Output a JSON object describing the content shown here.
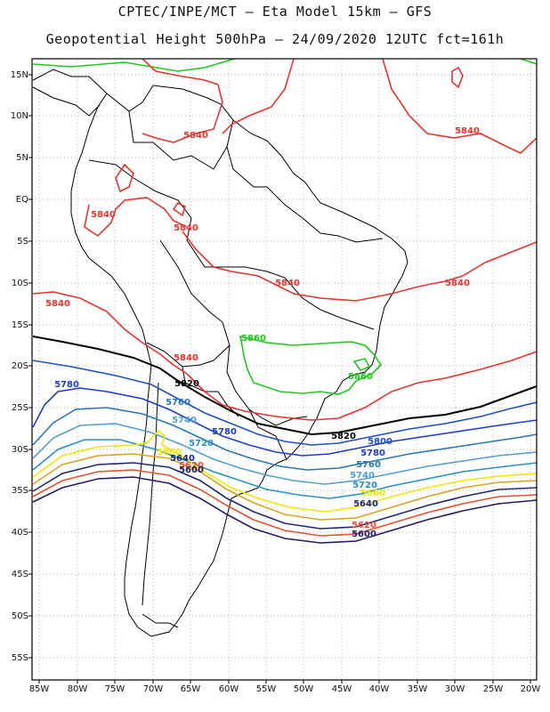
{
  "header": {
    "line1": "CPTEC/INPE/MCT –  Eta Model 15km – GFS",
    "line2": "Geopotential Height 500hPa – 24/09/2020 12UTC fct=161h"
  },
  "axes": {
    "lat_labels": [
      "15N",
      "10N",
      "5N",
      "EQ",
      "5S",
      "10S",
      "15S",
      "20S",
      "25S",
      "30S",
      "35S",
      "40S",
      "45S",
      "50S",
      "55S"
    ],
    "lon_labels": [
      "85W",
      "80W",
      "75W",
      "70W",
      "65W",
      "60W",
      "55W",
      "50W",
      "45W",
      "40W",
      "35W",
      "30W",
      "25W",
      "20W"
    ]
  },
  "contour_labels": [
    {
      "text": "5840",
      "color": "#e8332e"
    },
    {
      "text": "5840",
      "color": "#e8332e"
    },
    {
      "text": "5840",
      "color": "#e8332e"
    },
    {
      "text": "5840",
      "color": "#e8332e"
    },
    {
      "text": "5840",
      "color": "#e8332e"
    },
    {
      "text": "5840",
      "color": "#e8332e"
    },
    {
      "text": "5840",
      "color": "#e8332e"
    },
    {
      "text": "5840",
      "color": "#e8332e"
    },
    {
      "text": "5860",
      "color": "#1ec81e"
    },
    {
      "text": "5860",
      "color": "#1ec81e"
    },
    {
      "text": "5820",
      "color": "#000000"
    },
    {
      "text": "5820",
      "color": "#000000"
    },
    {
      "text": "5780",
      "color": "#1e3cd2"
    },
    {
      "text": "5780",
      "color": "#1e3cd2"
    },
    {
      "text": "5780",
      "color": "#1e3cd2"
    },
    {
      "text": "5760",
      "color": "#2878b4"
    },
    {
      "text": "5760",
      "color": "#2878b4"
    },
    {
      "text": "5740",
      "color": "#50a0d2"
    },
    {
      "text": "5740",
      "color": "#50a0d2"
    },
    {
      "text": "5720",
      "color": "#2890c8"
    },
    {
      "text": "5720",
      "color": "#2890c8"
    },
    {
      "text": "5800",
      "color": "#1e50c8"
    },
    {
      "text": "5660",
      "color": "#f0e600"
    },
    {
      "text": "5660",
      "color": "#f0e600"
    },
    {
      "text": "5640",
      "color": "#1e2878"
    },
    {
      "text": "5640",
      "color": "#1e2878"
    },
    {
      "text": "5620",
      "color": "#e85030"
    },
    {
      "text": "5620",
      "color": "#e85030"
    },
    {
      "text": "5600",
      "color": "#1e1e64"
    },
    {
      "text": "5600",
      "color": "#1e1e64"
    }
  ]
}
